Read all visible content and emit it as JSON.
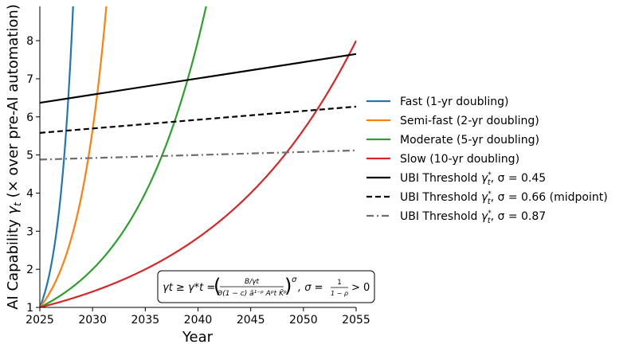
{
  "chart_data": {
    "type": "line",
    "title": "",
    "xlabel": "Year",
    "ylabel": "AI Capability γ_t (× over pre-AI automation)",
    "ylabel_parts": {
      "main": "AI Capability ",
      "symbol": "γ",
      "subscript": "t",
      "rest": " (× over pre-AI automation)"
    },
    "xlim": [
      2025,
      2055
    ],
    "ylim": [
      1,
      8.9
    ],
    "xticks": [
      2025,
      2030,
      2035,
      2040,
      2045,
      2050,
      2055
    ],
    "yticks": [
      1,
      2,
      3,
      4,
      5,
      6,
      7,
      8
    ],
    "grid": false,
    "legend_position": "right-outside",
    "series": [
      {
        "name": "Fast (1-yr doubling)",
        "color": "#1f77b4",
        "dash": "solid",
        "kind": "growth",
        "doubling_years": 1,
        "start_year": 2025,
        "start_value": 1
      },
      {
        "name": "Semi-fast (2-yr doubling)",
        "color": "#ff7f0e",
        "dash": "solid",
        "kind": "growth",
        "doubling_years": 2,
        "start_year": 2025,
        "start_value": 1
      },
      {
        "name": "Moderate (5-yr doubling)",
        "color": "#2ca02c",
        "dash": "solid",
        "kind": "growth",
        "doubling_years": 5,
        "start_year": 2025,
        "start_value": 1
      },
      {
        "name": "Slow (10-yr doubling)",
        "color": "#d62728",
        "dash": "solid",
        "kind": "growth",
        "doubling_years": 10,
        "start_year": 2025,
        "start_value": 1
      },
      {
        "name": "UBI Threshold γ*_t, σ = 0.45",
        "label_prefix": "UBI Threshold ",
        "label_suffix": ", σ = 0.45",
        "color": "#000000",
        "dash": "solid",
        "kind": "threshold",
        "x": [
          2025,
          2055
        ],
        "y": [
          6.37,
          7.65
        ]
      },
      {
        "name": "UBI Threshold γ*_t, σ = 0.66 (midpoint)",
        "label_prefix": "UBI Threshold ",
        "label_suffix": ", σ = 0.66 (midpoint)",
        "color": "#000000",
        "dash": "dashed",
        "kind": "threshold",
        "x": [
          2025,
          2055
        ],
        "y": [
          5.58,
          6.27
        ]
      },
      {
        "name": "UBI Threshold γ*_t, σ = 0.87",
        "label_prefix": "UBI Threshold ",
        "label_suffix": ", σ = 0.87",
        "color": "#6e6e6e",
        "dash": "dashdot",
        "kind": "threshold",
        "x": [
          2025,
          2055
        ],
        "y": [
          4.88,
          5.12
        ]
      }
    ],
    "annotation": {
      "lhs": "γt ≥ γ*t =",
      "numerator": "B/γt",
      "denominator": "Θ(1 − c) ā¹⁻ᵖ Aᵖt K̄ᵖ",
      "exponent": "σ",
      "rhs": ", σ =",
      "frac_num": "1",
      "frac_den": "1 − ρ",
      "tail": "> 0"
    }
  }
}
